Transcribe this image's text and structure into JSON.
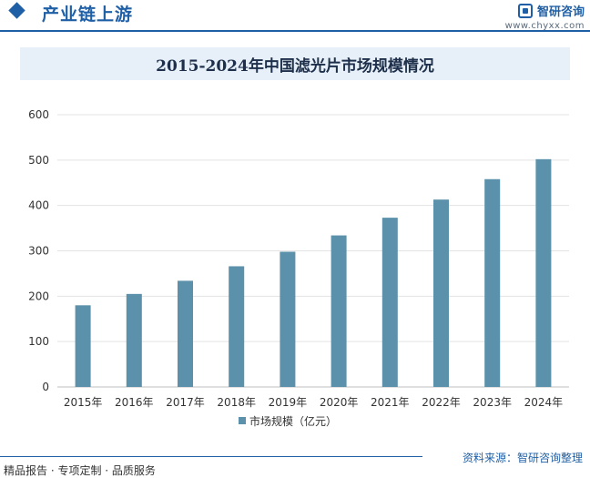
{
  "header": {
    "section_title": "产业链上游",
    "brand_name": "智研咨询",
    "brand_url": "www.chyxx.com"
  },
  "footer": {
    "left_text": "精品报告 · 专项定制 · 品质服务",
    "source_text": "资料来源：智研咨询整理"
  },
  "colors": {
    "bar": "#5b91aa",
    "accent": "#1f5fa6",
    "title_bg": "#e7f0f8"
  },
  "chart_data": {
    "type": "bar",
    "title": "2015-2024年中国滤光片市场规模情况",
    "categories": [
      "2015年",
      "2016年",
      "2017年",
      "2018年",
      "2019年",
      "2020年",
      "2021年",
      "2022年",
      "2023年",
      "2024年"
    ],
    "series": [
      {
        "name": "市场规模（亿元）",
        "values": [
          180,
          205,
          234,
          266,
          298,
          334,
          373,
          413,
          458,
          502
        ]
      }
    ],
    "ylim": [
      0,
      600
    ],
    "yticks": [
      0,
      100,
      200,
      300,
      400,
      500,
      600
    ],
    "grid": true,
    "legend_position": "bottom"
  }
}
